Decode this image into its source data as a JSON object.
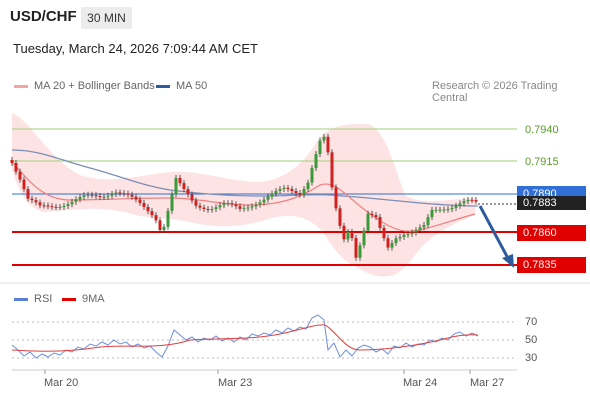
{
  "header": {
    "symbol": "USD/CHF",
    "timeframe": "30 MIN",
    "datetime": "Tuesday, March 24, 2026 7:09:44 AM CET"
  },
  "legend": {
    "ma20_label": "MA 20 + Bollinger Bands",
    "ma20_color": "#f4a3a3",
    "ma50_label": "MA 50",
    "ma50_color": "#2e5b9e",
    "credit": "Research © 2026 Trading Central"
  },
  "price_levels": {
    "resistance2": "0.7940",
    "resistance1": "0.7915",
    "pivot": "0.7890",
    "current": "0.7883",
    "support1": "0.7860",
    "support2": "0.7835",
    "resistance_color": "#7bb54a",
    "pivot_color": "#2f6fd6",
    "support_color": "#e00000"
  },
  "rsi_legend": {
    "rsi_label": "RSI",
    "rsi_color": "#5b7fd6",
    "ma_label": "9MA",
    "ma_color": "#e00000"
  },
  "rsi_axis": [
    "70",
    "50",
    "30"
  ],
  "x_axis": [
    "Mar 20",
    "Mar 23",
    "Mar 24",
    "Mar 27"
  ]
}
